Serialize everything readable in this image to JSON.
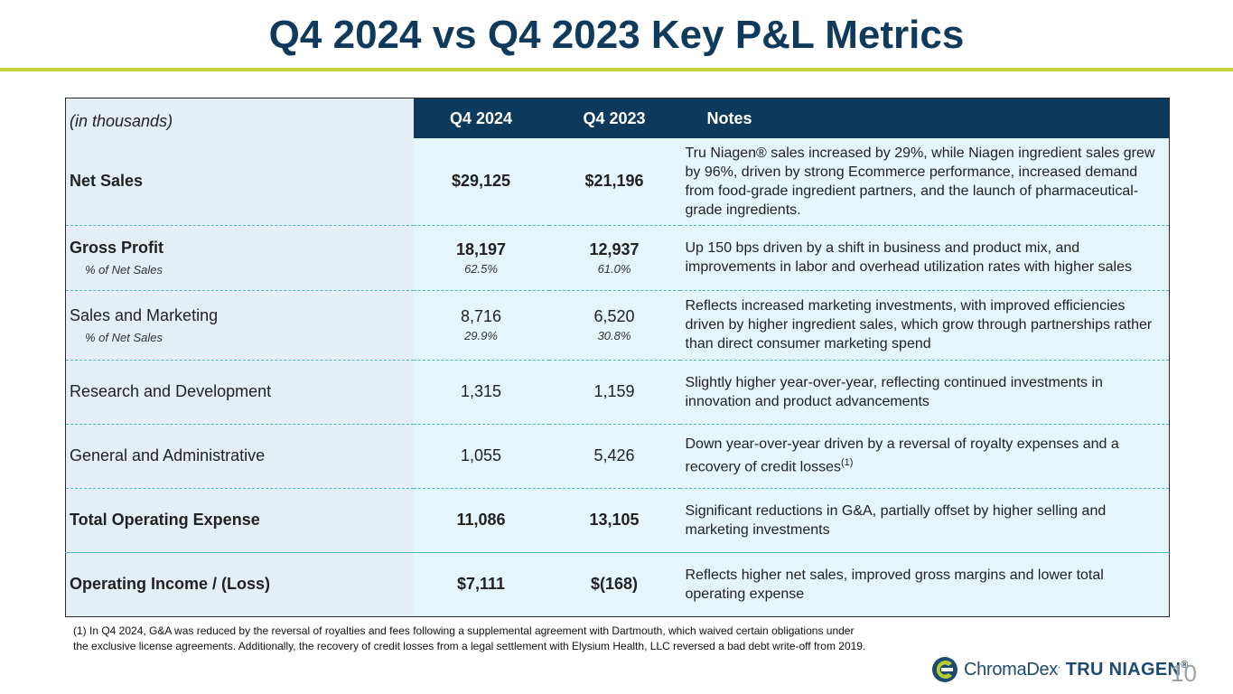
{
  "title": "Q4 2024 vs Q4 2023 Key P&L Metrics",
  "table": {
    "unit_label": "(in thousands)",
    "headers": [
      "Q4 2024",
      "Q4 2023",
      "Notes"
    ],
    "rows": [
      {
        "label": "Net Sales",
        "q4_2024": "$29,125",
        "q4_2023": "$21,196",
        "note": "Tru Niagen® sales increased by 29%, while Niagen ingredient sales grew by 96%, driven by strong Ecommerce performance, increased demand from food-grade ingredient partners, and the launch of pharmaceutical-grade ingredients."
      },
      {
        "label": "Gross Profit",
        "sub_label": "% of Net Sales",
        "q4_2024": "18,197",
        "q4_2024_pct": "62.5%",
        "q4_2023": "12,937",
        "q4_2023_pct": "61.0%",
        "note": "Up 150 bps driven by a shift in business and product mix, and improvements in labor and overhead utilization rates with higher sales"
      },
      {
        "label": "Sales and Marketing",
        "sub_label": "% of Net Sales",
        "q4_2024": "8,716",
        "q4_2024_pct": "29.9%",
        "q4_2023": "6,520",
        "q4_2023_pct": "30.8%",
        "note": "Reflects increased marketing investments, with improved efficiencies driven by higher ingredient sales, which grow through partnerships rather than direct consumer marketing spend"
      },
      {
        "label": "Research and Development",
        "q4_2024": "1,315",
        "q4_2023": "1,159",
        "note": "Slightly higher year-over-year, reflecting continued investments in innovation and product advancements"
      },
      {
        "label": "General and Administrative",
        "q4_2024": "1,055",
        "q4_2023": "5,426",
        "note": "Down year-over-year driven by a reversal of royalty expenses and a recovery of credit losses",
        "note_sup": "(1)"
      },
      {
        "label": "Total Operating Expense",
        "q4_2024": "11,086",
        "q4_2023": "13,105",
        "note": "Significant reductions in G&A, partially offset by higher selling and marketing investments"
      },
      {
        "label": "Operating Income / (Loss)",
        "q4_2024": "$7,111",
        "q4_2023": "$(168)",
        "note": "Reflects higher net sales, improved gross margins and lower total operating expense"
      }
    ]
  },
  "footnote": {
    "line1": "(1) In Q4 2024, G&A was reduced by the reversal of royalties and fees following a supplemental agreement with Dartmouth, which waived certain obligations under",
    "line2": "the exclusive license agreements. Additionally, the recovery of credit losses from a legal settlement with Elysium Health, LLC reversed a bad debt write-off from 2019."
  },
  "logo": {
    "chromadex": "ChromaDex",
    "chromadex_mark": ".",
    "tru_niagen": "TRU NIAGEN",
    "tru_niagen_mark": "®"
  },
  "page_number": "10",
  "colors": {
    "navy": "#0d3a5c",
    "accent_line": "#c8d33b",
    "row_bg": "#e4f6fb",
    "label_bg": "#e4eff5",
    "divider": "#4dbacc"
  }
}
